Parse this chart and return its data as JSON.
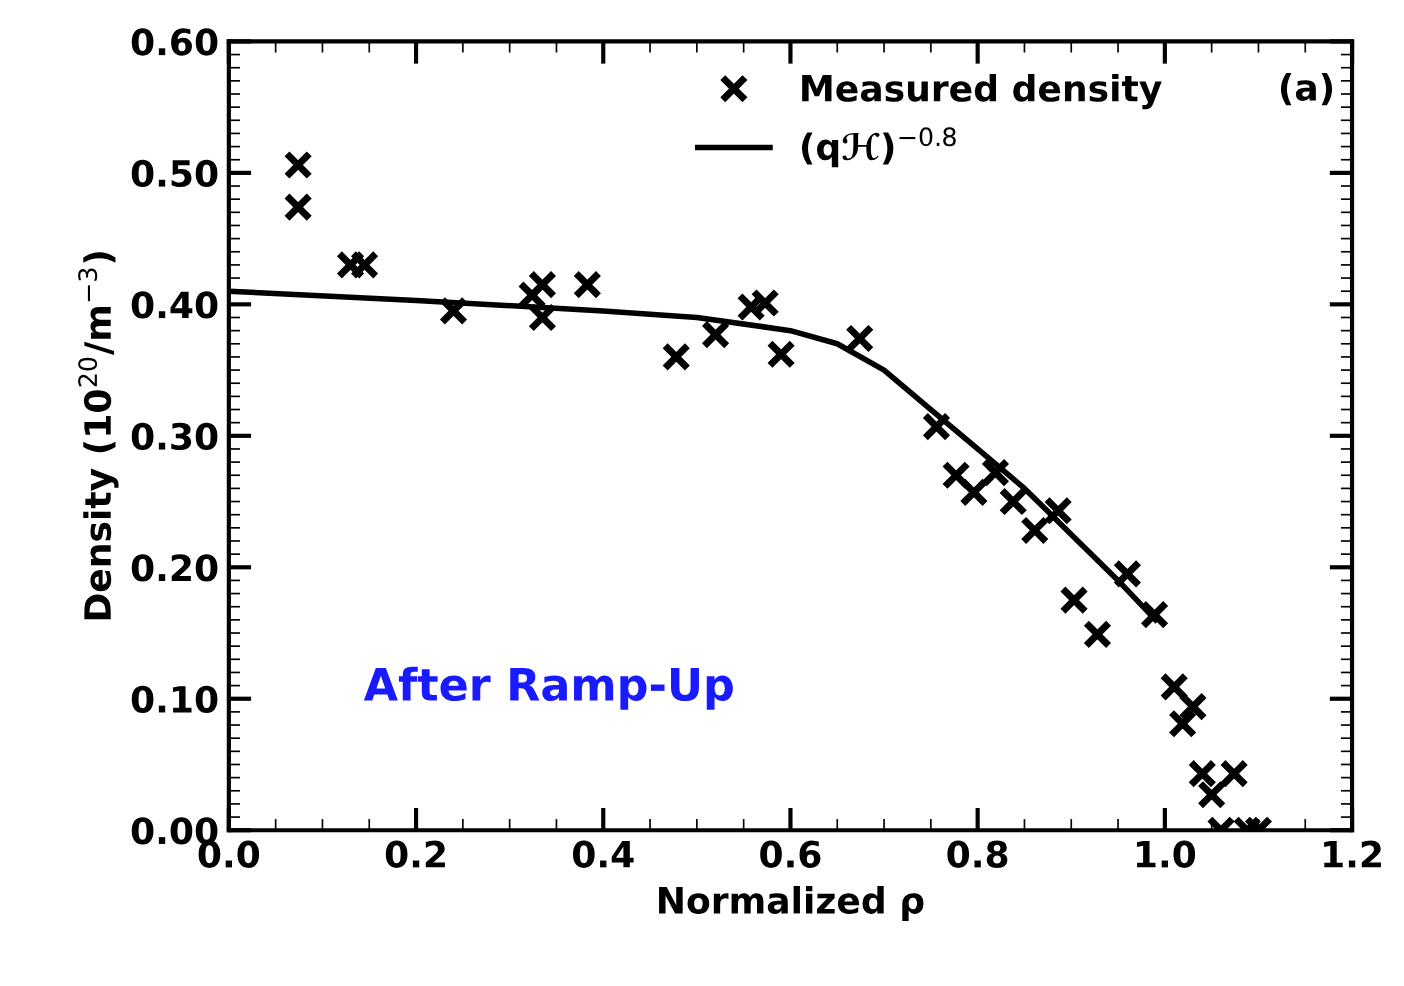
{
  "chart_data": {
    "type": "scatter",
    "xlabel": "Normalized ρ",
    "ylabel": "Density (10$^{20}$/m$^{−3}$)",
    "xlim": [
      0.0,
      1.2
    ],
    "xticks": [
      {
        "value": 0,
        "label": "0.0"
      },
      {
        "value": 0.2,
        "label": "0.2"
      },
      {
        "value": 0.4,
        "label": "0.4"
      },
      {
        "value": 0.6,
        "label": "0.6"
      },
      {
        "value": 0.8,
        "label": "0.8"
      },
      {
        "value": 1.0,
        "label": "1.0"
      },
      {
        "value": 1.2,
        "label": "1.2"
      }
    ],
    "ylim": [
      0.0,
      0.6
    ],
    "yticks": [
      {
        "value": 0,
        "label": "0.00"
      },
      {
        "value": 0.1,
        "label": "0.10"
      },
      {
        "value": 0.2,
        "label": "0.20"
      },
      {
        "value": 0.3,
        "label": "0.30"
      },
      {
        "value": 0.4,
        "label": "0.40"
      },
      {
        "value": 0.5,
        "label": "0.50"
      },
      {
        "value": 0.6,
        "label": "0.60"
      }
    ],
    "grid": false,
    "legend": "top right",
    "annotations": [
      "(a)",
      "After Ramp-Up"
    ],
    "series": [
      {
        "name": "Measured density",
        "marker": "cross",
        "color": "#000000",
        "x": [
          0.074,
          0.074,
          0.13,
          0.145,
          0.24,
          0.324,
          0.335,
          0.335,
          0.383,
          0.478,
          0.52,
          0.558,
          0.573,
          0.59,
          0.674,
          0.756,
          0.777,
          0.796,
          0.819,
          0.838,
          0.861,
          0.886,
          0.903,
          0.928,
          0.96,
          0.989,
          1.01,
          1.019,
          1.03,
          1.04,
          1.05,
          1.074,
          1.06,
          1.088,
          1.1
        ],
        "values": [
          0.506,
          0.474,
          0.43,
          0.43,
          0.395,
          0.407,
          0.415,
          0.39,
          0.415,
          0.36,
          0.377,
          0.398,
          0.401,
          0.362,
          0.374,
          0.307,
          0.27,
          0.257,
          0.272,
          0.25,
          0.228,
          0.243,
          0.175,
          0.149,
          0.195,
          0.164,
          0.109,
          0.081,
          0.094,
          0.043,
          0.027,
          0.043,
          0.0,
          0.0,
          0.0
        ]
      },
      {
        "name": "(qℋ)$^{−0.8}$",
        "type": "line",
        "marker": "none",
        "color": "#000000",
        "line_style": "solid",
        "x": [
          0,
          0.2,
          0.4,
          0.5,
          0.6,
          0.65,
          0.7,
          0.75,
          0.8,
          0.85,
          0.9,
          0.95,
          0.99
        ],
        "values": [
          0.41,
          0.403,
          0.395,
          0.39,
          0.38,
          0.37,
          0.35,
          0.32,
          0.29,
          0.26,
          0.225,
          0.19,
          0.16
        ]
      }
    ]
  }
}
